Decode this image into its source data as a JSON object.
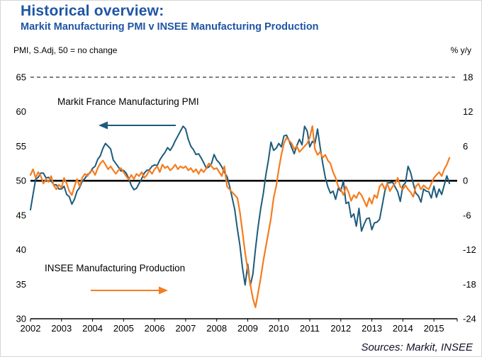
{
  "header": {
    "title": "Historical overview:",
    "subtitle": "Markit Manufacturing PMI v INSEE Manufacturing Production"
  },
  "axis_notes": {
    "left": "PMI, S.Adj, 50 = no change",
    "right": "% y/y"
  },
  "annotations": {
    "pmi_label": "Markit France Manufacturing PMI",
    "insee_label": "INSEE Manufacturing Production"
  },
  "footer": {
    "sources": "Sources: Markit, INSEE"
  },
  "colors": {
    "title": "#1F55A4",
    "pmi_line": "#1D5B7C",
    "insee_line": "#F47D20",
    "baseline": "#000000"
  },
  "chart_data": {
    "type": "line",
    "title": "Markit Manufacturing PMI v INSEE Manufacturing Production",
    "x_years": [
      2002,
      2003,
      2004,
      2005,
      2006,
      2007,
      2008,
      2009,
      2010,
      2011,
      2012,
      2013,
      2014,
      2015
    ],
    "x_domain": [
      2002.0,
      2015.75
    ],
    "left_axis": {
      "label": "PMI, S.Adj, 50 = no change",
      "ticks": [
        65,
        60,
        55,
        50,
        45,
        40,
        35,
        30
      ],
      "range": [
        30,
        65
      ]
    },
    "right_axis": {
      "label": "% y/y",
      "ticks": [
        18,
        12,
        6,
        0,
        -6,
        -12,
        -18,
        -24
      ],
      "range": [
        -24,
        18
      ]
    },
    "baseline": {
      "left_value": 50,
      "right_value": 0
    },
    "grid": {
      "top_dashed_at_left_value": 65
    },
    "legend_position": "annotations-with-arrows",
    "series": [
      {
        "name": "Markit France Manufacturing PMI",
        "axis": "left",
        "color": "#1D5B7C",
        "start_year": 2002,
        "interval_months": 1,
        "values": [
          45.8,
          48.0,
          50.2,
          50.5,
          51.1,
          51.1,
          50.4,
          50.5,
          50.0,
          49.4,
          49.4,
          48.8,
          48.8,
          49.2,
          48.0,
          47.7,
          46.6,
          47.3,
          48.5,
          49.0,
          49.9,
          50.3,
          50.9,
          51.1,
          51.8,
          52.1,
          53.1,
          53.6,
          54.7,
          55.4,
          55.0,
          54.6,
          53.0,
          52.5,
          52.0,
          51.4,
          51.5,
          51.1,
          50.3,
          49.3,
          48.7,
          48.9,
          49.6,
          50.3,
          51.1,
          51.5,
          51.6,
          52.1,
          52.3,
          52.2,
          53.0,
          53.6,
          54.1,
          54.8,
          54.4,
          55.0,
          55.8,
          56.5,
          57.2,
          57.9,
          57.5,
          56.0,
          55.0,
          54.5,
          53.8,
          53.9,
          53.3,
          52.6,
          51.8,
          52.0,
          52.5,
          53.8,
          53.0,
          52.6,
          52.0,
          51.2,
          50.6,
          49.2,
          47.5,
          45.8,
          43.0,
          40.6,
          37.3,
          34.9,
          37.9,
          34.8,
          36.5,
          40.1,
          43.3,
          45.9,
          48.1,
          50.8,
          53.0,
          55.6,
          54.4,
          54.7,
          55.4,
          54.9,
          56.5,
          56.6,
          55.8,
          54.8,
          53.9,
          55.1,
          56.0,
          55.2,
          57.9,
          57.2,
          54.9,
          55.7,
          55.4,
          57.5,
          54.9,
          52.5,
          50.5,
          49.1,
          48.2,
          48.5,
          47.3,
          48.9,
          48.5,
          50.0,
          46.7,
          46.9,
          44.7,
          45.2,
          43.4,
          46.0,
          42.7,
          43.7,
          44.5,
          44.6,
          42.9,
          43.9,
          44.0,
          44.4,
          46.4,
          48.4,
          49.7,
          49.7,
          49.8,
          49.1,
          48.4,
          47.0,
          49.3,
          49.7,
          52.1,
          51.2,
          49.6,
          48.2,
          47.8,
          46.9,
          48.8,
          48.5,
          48.4,
          47.5,
          49.2,
          47.6,
          48.8,
          48.0,
          49.4,
          50.7,
          49.6
        ]
      },
      {
        "name": "INSEE Manufacturing Production",
        "axis": "right",
        "color": "#F47D20",
        "start_year": 2002,
        "interval_months": 1,
        "values": [
          1.0,
          2.0,
          0.5,
          1.5,
          0.8,
          -0.5,
          0.3,
          -0.2,
          0.8,
          -0.8,
          -1.5,
          -0.7,
          -1.2,
          0.5,
          -0.5,
          -1.8,
          -2.5,
          -1.0,
          0.3,
          -1.0,
          0.5,
          1.2,
          0.8,
          1.5,
          1.8,
          1.0,
          2.2,
          3.0,
          3.5,
          2.8,
          2.0,
          2.5,
          1.8,
          1.2,
          1.8,
          2.2,
          1.5,
          0.8,
          0.2,
          1.0,
          0.3,
          1.2,
          0.8,
          1.5,
          0.5,
          1.0,
          1.8,
          1.2,
          2.0,
          2.5,
          1.5,
          2.8,
          2.2,
          2.5,
          1.8,
          2.2,
          2.8,
          2.0,
          2.5,
          2.2,
          2.5,
          1.8,
          2.2,
          1.5,
          2.0,
          1.2,
          2.0,
          1.5,
          2.2,
          3.0,
          2.5,
          2.0,
          2.2,
          1.5,
          0.8,
          2.5,
          -1.0,
          -1.5,
          -2.0,
          -2.5,
          -3.0,
          -5.5,
          -9.0,
          -12.5,
          -15.5,
          -18.0,
          -20.5,
          -22.0,
          -19.5,
          -17.0,
          -14.0,
          -11.5,
          -9.0,
          -6.5,
          -3.0,
          -1.0,
          2.0,
          4.5,
          6.5,
          7.5,
          7.0,
          6.5,
          5.5,
          6.0,
          5.0,
          5.5,
          6.0,
          6.5,
          7.5,
          9.5,
          5.5,
          4.5,
          5.0,
          4.0,
          4.5,
          3.5,
          3.0,
          1.5,
          0.5,
          -1.0,
          -1.5,
          -2.5,
          -1.0,
          -2.0,
          -3.5,
          -2.5,
          -3.0,
          -2.0,
          -2.5,
          -3.5,
          -4.5,
          -3.0,
          -4.0,
          -2.5,
          -3.0,
          -1.0,
          -0.5,
          -1.5,
          -0.5,
          -1.8,
          -1.0,
          -0.5,
          0.5,
          -1.0,
          -1.5,
          -0.8,
          -1.5,
          -2.0,
          -2.8,
          -1.0,
          -0.5,
          -1.5,
          -0.8,
          -1.2,
          -1.5,
          -0.5,
          0.5,
          1.0,
          1.5,
          0.8,
          2.0,
          2.8,
          4.0
        ]
      }
    ]
  }
}
